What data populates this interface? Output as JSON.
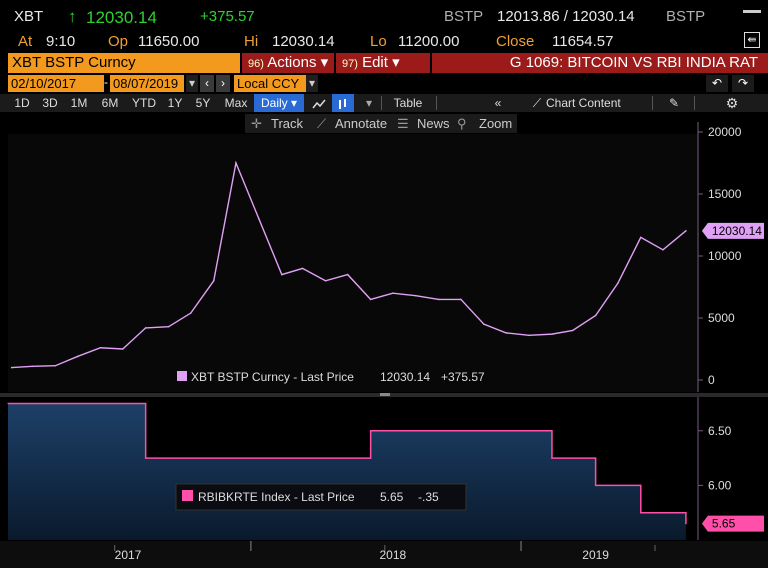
{
  "quote": {
    "ticker": "XBT",
    "arrow": "↑",
    "last": "12030.14",
    "change": "+375.57",
    "source": "BSTP",
    "bid_ask": "12013.86 / 12030.14",
    "source2": "BSTP",
    "at_label": "At",
    "at_value": "9:10",
    "op_label": "Op",
    "op_value": "11650.00",
    "hi_label": "Hi",
    "hi_value": "12030.14",
    "lo_label": "Lo",
    "lo_value": "11200.00",
    "close_label": "Close",
    "close_value": "11654.57"
  },
  "titlebar": {
    "security": "XBT BSTP Curncy",
    "actions_num": "96)",
    "actions_label": "Actions ▾",
    "edit_num": "97)",
    "edit_label": "Edit ▾",
    "chart_title": "G 1069: BITCOIN VS RBI INDIA RAT"
  },
  "daterow": {
    "start": "02/10/2017",
    "end": "08/07/2019",
    "currency": "Local CCY"
  },
  "toolbar": {
    "periods": [
      "1D",
      "3D",
      "1M",
      "6M",
      "YTD",
      "1Y",
      "5Y",
      "Max"
    ],
    "frequency": "Daily ▾",
    "table": "Table",
    "chart_content": "Chart Content"
  },
  "subtool": {
    "track": "Track",
    "annotate": "Annotate",
    "news": "News",
    "zoom": "Zoom"
  },
  "chart_data": [
    {
      "type": "line",
      "series": [
        {
          "name": "XBT BSTP Curncy - Last Price 12030.14 +375.57",
          "color": "#e0a0f5"
        }
      ],
      "legend_name": "XBT BSTP Curncy - Last Price",
      "legend_value": "12030.14",
      "legend_change": "+375.57",
      "last_label": "12030.14",
      "ylim": [
        0,
        20000
      ],
      "yticks": [
        "20000",
        "15000",
        "10000",
        "5000",
        "0"
      ],
      "ytick_values": [
        20000,
        15000,
        10000,
        5000,
        0
      ],
      "x": [
        "2017-02",
        "2017-03",
        "2017-04",
        "2017-05",
        "2017-06",
        "2017-07",
        "2017-08",
        "2017-09",
        "2017-10",
        "2017-11",
        "2017-12",
        "2018-01",
        "2018-02",
        "2018-03",
        "2018-04",
        "2018-05",
        "2018-06",
        "2018-07",
        "2018-08",
        "2018-09",
        "2018-10",
        "2018-11",
        "2018-12",
        "2019-01",
        "2019-02",
        "2019-03",
        "2019-04",
        "2019-05",
        "2019-06",
        "2019-07",
        "2019-08"
      ],
      "values": [
        1000,
        1100,
        1150,
        1900,
        2600,
        2500,
        4200,
        4300,
        5400,
        8000,
        17500,
        13000,
        8500,
        9000,
        8000,
        8500,
        6500,
        7000,
        6800,
        6500,
        6500,
        4500,
        3800,
        3600,
        3700,
        4000,
        5200,
        7800,
        11500,
        10500,
        12030
      ]
    },
    {
      "type": "line",
      "series": [
        {
          "name": "RBIBKRTE Index - Last Price 5.65 -.35",
          "color": "#ff4fa8"
        }
      ],
      "legend_name": "RBIBKRTE Index - Last Price",
      "legend_value": "5.65",
      "legend_change": "-.35",
      "last_label": "5.65",
      "ylim": [
        5.5,
        6.8
      ],
      "yticks": [
        "6.50",
        "6.00"
      ],
      "ytick_values": [
        6.5,
        6.0
      ],
      "x_labels": [
        "2017",
        "2018",
        "2019"
      ],
      "steps": [
        {
          "from": "2017-02",
          "to": "2017-08",
          "value": 6.75
        },
        {
          "from": "2017-08",
          "to": "2018-06",
          "value": 6.25
        },
        {
          "from": "2018-06",
          "to": "2018-08",
          "value": 6.5
        },
        {
          "from": "2018-08",
          "to": "2019-02",
          "value": 6.5
        },
        {
          "from": "2019-02",
          "to": "2019-04",
          "value": 6.25
        },
        {
          "from": "2019-04",
          "to": "2019-06",
          "value": 6.0
        },
        {
          "from": "2019-06",
          "to": "2019-08",
          "value": 5.75
        },
        {
          "from": "2019-08",
          "to": "2019-08",
          "value": 5.65
        }
      ]
    }
  ]
}
